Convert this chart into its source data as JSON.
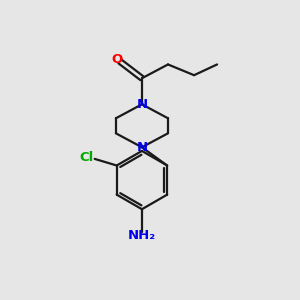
{
  "background_color": "#e6e6e6",
  "bond_color": "#1a1a1a",
  "atom_colors": {
    "O": "#ff0000",
    "N": "#0000ee",
    "Cl": "#00aa00",
    "NH2": "#0000ee"
  },
  "figsize": [
    3.0,
    3.0
  ],
  "dpi": 100
}
